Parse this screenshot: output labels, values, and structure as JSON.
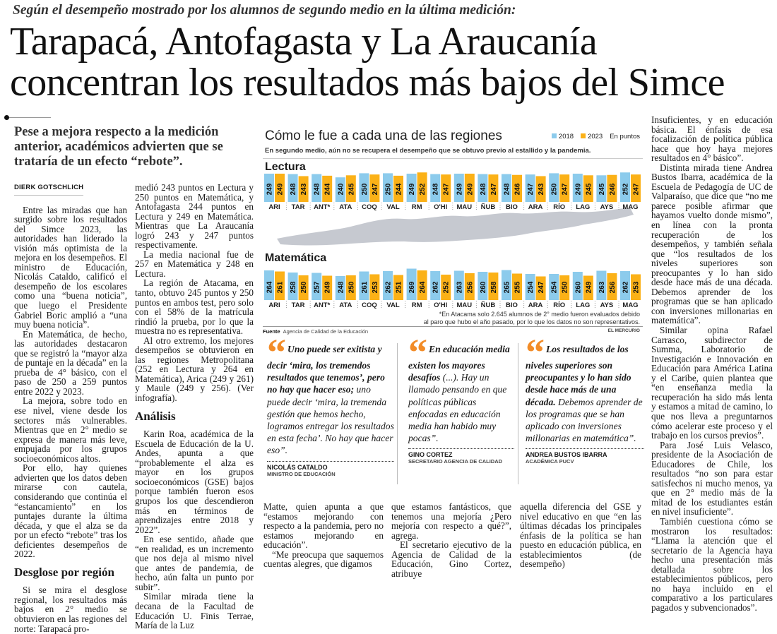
{
  "header": {
    "kicker": "Según el desempeño mostrado por los alumnos de segundo medio en la última medición:",
    "title_line1": "Tarapacá, Antofagasta y La Araucanía",
    "title_line2": "concentran los resultados más bajos del Simce",
    "deck": "Pese a mejora respecto a la medición anterior, académicos advierten que se trataría de un efecto “rebote”."
  },
  "byline": "DIERK GOTSCHLICH",
  "col1": {
    "paragraphs": [
      "Entre las miradas que han surgido sobre los resultados del Simce 2023, las autoridades han liderado la visión más optimista de la mejora en los desempeños. El ministro de Educación, Nicolás Cataldo, calificó el desempeño de los escolares como una “buena noticia”, que luego el Presidente Gabriel Boric amplió a “una muy buena noticia”.",
      "En Matemática, de hecho, las autoridades destacaron que se registró la “mayor alza de puntaje en la década” en la prueba de 4° básico, con el paso de 250 a 259 puntos entre 2022 y 2023.",
      "La mejora, sobre todo en ese nivel, viene desde los sectores más vulnerables. Mientras que en 2° medio se expresa de manera más leve, empujada por los grupos socioeconómicos altos.",
      "Por ello, hay quienes advierten que los datos deben mirarse con cautela, considerando que continúa el “estancamiento” en los puntajes durante la última década, y que el alza se da por un efecto “rebote” tras los deficientes desempeños de 2022."
    ],
    "subhead": "Desglose por región",
    "after": "Si se mira el desglose regional, los resultados más bajos en 2° medio se obtuvieron en las regiones del norte: Tarapacá pro-"
  },
  "col2": {
    "paragraphs": [
      "medió 243 puntos en Lectura y 250 puntos en Matemática, y Antofagasta 244 puntos en Lectura y 249 en Matemática. Mientras que La Araucanía logró 243 y 247 puntos respectivamente.",
      "La media nacional fue de 257 en Matemática y 248 en Lectura.",
      "La región de Atacama, en tanto, obtuvo 245 puntos y 250 puntos en ambos test, pero solo con el 58% de la matrícula rindió la prueba, por lo que la muestra no es representativa.",
      "Al otro extremo, los mejores desempeños se obtuvieron en las regiones Metropolitana (252 en Lectura y 264 en Matemática), Arica (249 y 261) y Maule (249 y 256). (Ver infografía)."
    ],
    "subhead": "Análisis",
    "after": [
      "Karin Roa, académica de la Escuela de Educación de la U. Andes, apunta a que “probablemente el alza es mayor en los grupos socioeconómicos (GSE) bajos porque también fueron esos grupos los que descendieron más en términos de aprendizajes entre 2018 y 2022”.",
      "En ese sentido, añade que “en realidad, es un incremento que nos deja al mismo nivel que antes de pandemia, de hecho, aún falta un punto por subir”.",
      "Similar mirada tiene la decana de la Facultad de Educación U. Finis Terrae, María de la Luz"
    ]
  },
  "bottom": [
    [
      "Matte, quien apunta a que “estamos mejorando con respecto a la pandemia, pero no estamos mejorando en educación”.",
      "“Me preocupa que saquemos cuentas alegres, que digamos"
    ],
    [
      "que estamos fantásticos, que tenemos una mejoría ¿Pero mejoría con respecto a qué?”, agrega.",
      "El secretario ejecutivo de la Agencia de Calidad de la Educación, Gino Cortez, atribuye"
    ],
    [
      "aquella diferencia del GSE y nivel educativo en que “en las últimas décadas los principales énfasis de la política se han puesto en educación pública, en establecimientos (de desempeño)"
    ]
  ],
  "right_col": [
    "Insuficientes, y en educación básica. El énfasis de esa focalización de política pública hace que hoy haya mejores resultados en 4° básico”.",
    "Distinta mirada tiene Andrea Bustos Ibarra, académica de la Escuela de Pedagogía de UC de Valparaíso, que dice que “no me parece posible afirmar que hayamos vuelto donde mismo”, en línea con la pronta recuperación de los desempeños, y también señala que “los resultados de los niveles superiores son preocupantes y lo han sido desde hace más de una década. Debemos aprender de los programas que se han aplicado con inversiones millonarias en matemática”.",
    "Similar opina Rafael Carrasco, subdirector de Summa, Laboratorio de Investigación e Innovación en Educación para América Latina y el Caribe, quien plantea que “en enseñanza media la recuperación ha sido más lenta y estamos a mitad de camino, lo que nos lleva a preguntarnos cómo acelerar este proceso y el trabajo en los cursos previos”.",
    "Para José Luis Velasco, presidente de la Asociación de Educadores de Chile, los resultados “no son para estar satisfechos ni mucho menos, ya que en 2° medio más de la mitad de los estudiantes están en nivel insuficiente”.",
    "También cuestiona cómo se mostraron los resultados: “Llama la atención que el secretario de la Agencia haya hecho una presentación más detallada sobre los establecimientos públicos, pero no haya incluido en el comparativo a los particulares pagados y subvencionados”."
  ],
  "quotes": [
    {
      "icon": "quote-mark-icon",
      "bold": "Uno puede ser exitista y decir ‘mira, los tremendos resultados que tenemos’, pero no hay que hacer eso;",
      "rest": " uno puede decir ‘mira, la tremenda gestión que hemos hecho, logramos entregar los resultados en esta fecha’. No hay que hacer eso”.",
      "name": "NICOLÁS CATALDO",
      "role": "MINISTRO DE EDUCACIÓN"
    },
    {
      "icon": "quote-mark-icon",
      "bold": "En educación media existen los mayores desafíos",
      "rest": " (...). Hay un llamado pensando en que políticas públicas enfocadas en educación media han habido muy pocas”.",
      "name": "GINO CORTEZ",
      "role": "SECRETARIO AGENCIA DE CALIDAD"
    },
    {
      "icon": "quote-mark-icon",
      "bold": "Los resultados de los niveles superiores son preocupantes y lo han sido desde hace más de una década.",
      "rest": " Debemos aprender de los programas que se han aplicado con inversiones millonarias en matemática”.",
      "name": "ANDREA BUSTOS IBARRA",
      "role": "ACADÉMICA PUCV"
    }
  ],
  "quote_glyph": "“",
  "infographic": {
    "title": "Cómo le fue a cada una de las regiones",
    "subtitle": "En segundo medio, aún no se recupera el desempeño que se obtuvo previo al estallido y la pandemia.",
    "units": "En puntos",
    "note_line1": "*En Atacama solo 2.645 alumnos de 2° medio fueron evaluados debido",
    "note_line2": "al paro que hubo el año pasado, por lo que los datos no son representativos.",
    "source_label": "Fuente",
    "source": "Agencia de Calidad de la Educación",
    "brand": "EL MERCURIO"
  },
  "colors": {
    "2018": "#8ccbec",
    "2023": "#fbb117",
    "quote_accent": "#f28c28",
    "map": "#b8bcc4"
  },
  "chart_data": {
    "type": "bar",
    "categories": [
      "ARI",
      "TAR",
      "ANT*",
      "ATA",
      "COQ",
      "VAL",
      "RM",
      "O'HI",
      "MAU",
      "ÑUB",
      "BIO",
      "ARA",
      "RÍO",
      "LAG",
      "AYS",
      "MAG"
    ],
    "legend": [
      "2018",
      "2023"
    ],
    "legend_placement": "top-right",
    "panels": [
      {
        "title": "Lectura",
        "series": [
          {
            "name": "2018",
            "values": [
              249,
              248,
              248,
              240,
              250,
              250,
              249,
              248,
              249,
              248,
              248,
              247,
              250,
              249,
              245,
              252
            ]
          },
          {
            "name": "2023",
            "values": [
              249,
              243,
              244,
              245,
              247,
              244,
              252,
              247,
              249,
              247,
              246,
              243,
              247,
              245,
              246,
              247
            ]
          }
        ]
      },
      {
        "title": "Matemática",
        "series": [
          {
            "name": "2018",
            "values": [
              264,
              258,
              257,
              248,
              261,
              262,
              269,
              262,
              263,
              260,
              265,
              254,
              254,
              260,
              263,
              262
            ]
          },
          {
            "name": "2023",
            "values": [
              261,
              250,
              249,
              250,
              253,
              251,
              264,
              252,
              256,
              258,
              255,
              247,
              250,
              249,
              256,
              253
            ]
          }
        ]
      }
    ]
  }
}
